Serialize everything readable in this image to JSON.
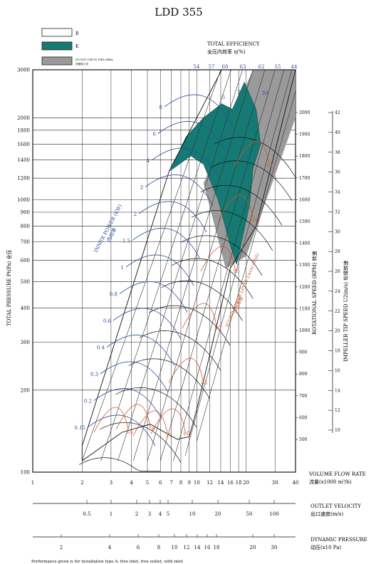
{
  "chart_data": {
    "type": "fan-performance-chart",
    "title": "LDD 355",
    "legend": [
      {
        "symbol": "B",
        "fill": "#ffffff"
      },
      {
        "symbol": "K",
        "fill": "#157a73"
      },
      {
        "symbol": "DO NOT USE IN THIS AREA",
        "sub": "非使用工况",
        "fill": "#9a9a9a"
      }
    ],
    "efficiency_title": "TOTAL EFFICIENCY",
    "efficiency_title_cn": "全压内效率 η(%)",
    "efficiency_values": [
      "54",
      "57",
      "60",
      "63",
      "62",
      "55",
      "44"
    ],
    "y_axis": {
      "label": "TOTAL PRESSURE Pt(Pa) 全压",
      "scale": "log",
      "range": [
        100,
        3000
      ],
      "ticks": [
        100,
        200,
        300,
        400,
        500,
        600,
        700,
        800,
        900,
        1000,
        1200,
        1400,
        1600,
        1800,
        2000,
        3000
      ]
    },
    "x_axis": {
      "label": "VOLUME FLOW RATE",
      "label_cn": "流量(x1000 m³/h)",
      "scale": "log",
      "range": [
        1,
        40
      ],
      "ticks": [
        1,
        2,
        3,
        4,
        5,
        6,
        7,
        8,
        9,
        10,
        12,
        14,
        16,
        18,
        20,
        30,
        40
      ]
    },
    "outlet_velocity": {
      "label": "OUTLET VELOCITY",
      "label_cn": "出口速度(m/s)",
      "ticks": [
        "0.5",
        "1",
        "2",
        "3",
        "4",
        "5",
        "10",
        "20",
        "50",
        "100"
      ]
    },
    "dynamic_pressure": {
      "label": "DYNAMIC PRESSURE",
      "label_cn": "动压(x10 Pa)",
      "ticks": [
        "2",
        "4",
        "6",
        "8",
        "10",
        "12",
        "14",
        "16",
        "18",
        "20",
        "30",
        "40"
      ]
    },
    "rotational_speed": {
      "label": "ROTATIONAL SPEED (RPM) 转速",
      "ticks": [
        "2000",
        "1900",
        "1800",
        "1700",
        "1600",
        "1500",
        "1400",
        "1300",
        "1200",
        "1100",
        "1000",
        "900",
        "800",
        "700",
        "600",
        "500"
      ]
    },
    "tip_speed": {
      "label": "IMPELLER TIP SPEED U2(m/s) 轮缘转速",
      "ticks": [
        "42",
        "40",
        "38",
        "36",
        "34",
        "32",
        "30",
        "28",
        "26",
        "24",
        "22",
        "20",
        "18",
        "16",
        "14",
        "12",
        "10"
      ]
    },
    "inner_power": {
      "label": "INNER POWER (KW)",
      "label_cn": "内功率",
      "values": [
        "0.15",
        "0.2",
        "0.3",
        "0.4",
        "0.6",
        "0.8",
        "1",
        "1.5",
        "2",
        "3",
        "4",
        "6",
        "8"
      ]
    },
    "sound_power": {
      "label": "SOUND POWER LEVEL Lw(A) dB(A)",
      "label_cn": "声功率级",
      "values": [
        "65",
        "70",
        "75",
        "80",
        "85",
        "90",
        "95",
        "100",
        "103"
      ]
    },
    "inner_labels": [
      "5",
      "23",
      "30"
    ],
    "footnote": "Performance given is for installation type A: free inlet, free outlet, with inlet"
  }
}
